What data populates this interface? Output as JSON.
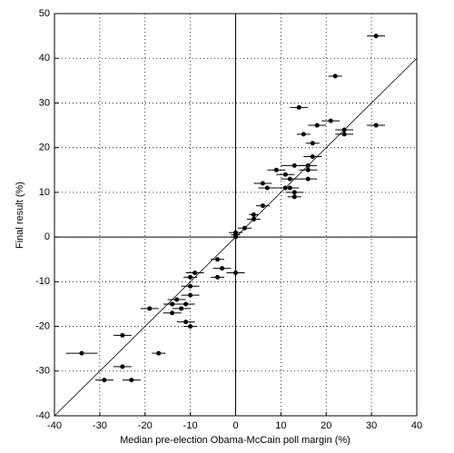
{
  "chart_data": {
    "type": "scatter",
    "x_label": "Median pre-election Obama-McCain poll margin (%)",
    "y_label": "Final result (%)",
    "xlim": [
      -40,
      40
    ],
    "ylim": [
      -40,
      50
    ],
    "xticks": [
      -40,
      -30,
      -20,
      -10,
      0,
      10,
      20,
      30,
      40
    ],
    "yticks": [
      -40,
      -30,
      -20,
      -10,
      0,
      10,
      20,
      30,
      40,
      50
    ],
    "grid": true,
    "reference_line": "y=x",
    "series": [
      {
        "color": "#000000",
        "x": [
          31,
          22,
          14,
          21,
          31,
          18,
          24,
          24,
          15,
          17,
          17,
          13,
          16,
          9,
          16,
          11,
          12,
          16,
          6,
          7,
          12,
          11,
          13,
          13,
          6,
          4,
          4,
          2,
          0,
          0,
          0,
          -4,
          -3,
          0,
          -4,
          -9,
          -10,
          -10,
          -10,
          -13,
          -11,
          -14,
          -12,
          -19,
          -14,
          -11,
          -10,
          -25,
          -34,
          -17,
          -25,
          -29,
          -23
        ],
        "y": [
          45,
          36,
          29,
          26,
          25,
          25,
          24,
          23,
          23,
          21,
          18,
          16,
          16,
          15,
          15,
          14,
          13,
          13,
          12,
          11,
          11,
          11,
          10,
          9,
          7,
          5,
          4,
          2,
          1,
          0.5,
          0,
          -5,
          -7,
          -8,
          -9,
          -8,
          -9,
          -11,
          -13,
          -14,
          -15,
          -15,
          -16,
          -16,
          -17,
          -19,
          -20,
          -22,
          -26,
          -26,
          -29,
          -32,
          -32
        ],
        "xerr": [
          2,
          1.5,
          2,
          2,
          2,
          2,
          2,
          2,
          1.5,
          1.5,
          2,
          3,
          2,
          2,
          2,
          2,
          2,
          2,
          2,
          2,
          2,
          2,
          2,
          1.5,
          1.5,
          1,
          1.5,
          1.5,
          1.5,
          1,
          1,
          1.5,
          2,
          2,
          1.5,
          2,
          1.5,
          2,
          2,
          2,
          2,
          2,
          2,
          2,
          2,
          2,
          1.5,
          2,
          3.5,
          1.5,
          2,
          2,
          2
        ]
      }
    ]
  }
}
